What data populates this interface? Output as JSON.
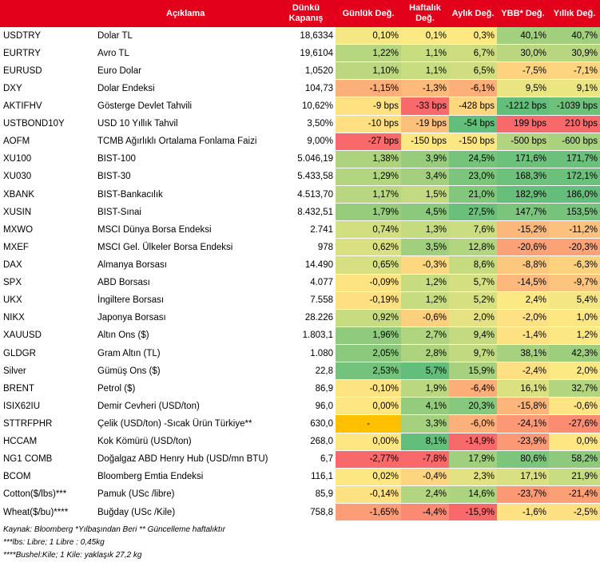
{
  "header": {
    "col_code": "",
    "col_desc": "Açıklama",
    "col_close": "Dünkü Kapanış",
    "col_daily": "Günlük Değ.",
    "col_weekly": "Haftalık Değ.",
    "col_monthly": "Aylık Değ.",
    "col_ytd": "YBB* Değ.",
    "col_yearly": "Yıllık Değ."
  },
  "colors": {
    "header_bg": "#e2001a",
    "green_strong": "#63be7b",
    "yellow": "#ffeb84",
    "red_strong": "#f8696b",
    "highlight": "#ffc000"
  },
  "rows": [
    {
      "code": "USDTRY",
      "desc": "Dolar TL",
      "close": "18,6334",
      "daily": "0,10%",
      "weekly": "0,1%",
      "monthly": "0,3%",
      "ytd": "40,1%",
      "yearly": "40,7%",
      "c": [
        "#f5e783",
        "#fbe983",
        "#fde882",
        "#a3d07e",
        "#a1cf7e"
      ]
    },
    {
      "code": "EURTRY",
      "desc": "Avro TL",
      "close": "19,6104",
      "daily": "1,22%",
      "weekly": "1,1%",
      "monthly": "6,7%",
      "ytd": "30,0%",
      "yearly": "30,9%",
      "c": [
        "#b6d67f",
        "#c8dc80",
        "#cfdd81",
        "#bad780",
        "#b8d67f"
      ]
    },
    {
      "code": "EURUSD",
      "desc": "Euro Dolar",
      "close": "1,0520",
      "daily": "1,10%",
      "weekly": "1,1%",
      "monthly": "6,5%",
      "ytd": "-7,5%",
      "yearly": "-7,1%",
      "c": [
        "#bcd780",
        "#c8dc80",
        "#d0de81",
        "#fdd37f",
        "#fdd47f"
      ]
    },
    {
      "code": "DXY",
      "desc": "Dolar Endeksi",
      "close": "104,73",
      "daily": "-1,15%",
      "weekly": "-1,3%",
      "monthly": "-6,1%",
      "ytd": "9,5%",
      "yearly": "9,1%",
      "c": [
        "#fcb079",
        "#fcbb7b",
        "#fcaf79",
        "#eae582",
        "#ebe582"
      ]
    },
    {
      "code": "AKTIFHV",
      "desc": "Gösterge Devlet Tahvili",
      "close": "10,62%",
      "daily": "-9 bps",
      "weekly": "-33 bps",
      "monthly": "-428 bps",
      "ytd": "-1212 bps",
      "yearly": "-1039 bps",
      "c": [
        "#fee282",
        "#f8696b",
        "#fed680",
        "#63be7b",
        "#6dc17b"
      ]
    },
    {
      "code": "USTBOND10Y",
      "desc": "USD 10 Yıllık Tahvil",
      "close": "3,50%",
      "daily": "-10 bps",
      "weekly": "-19 bps",
      "monthly": "-54 bps",
      "ytd": "199 bps",
      "yearly": "210 bps",
      "c": [
        "#fee082",
        "#fdbf7c",
        "#63be7b",
        "#f8696b",
        "#f8696b"
      ]
    },
    {
      "code": "AOFM",
      "desc": "TCMB Ağırlıklı Ortalama Fonlama Faizi",
      "close": "9,00%",
      "daily": "-27 bps",
      "weekly": "-150 bps",
      "monthly": "-150 bps",
      "ytd": "-500 bps",
      "yearly": "-600 bps",
      "c": [
        "#f8696b",
        "#fde783",
        "#fde783",
        "#b3d47f",
        "#a9d27f"
      ]
    },
    {
      "code": "XU100",
      "desc": "BIST-100",
      "close": "5.046,19",
      "daily": "1,38%",
      "weekly": "3,9%",
      "monthly": "24,5%",
      "ytd": "171,6%",
      "yearly": "171,7%",
      "c": [
        "#aed37e",
        "#98cc7d",
        "#76c47c",
        "#6cc17b",
        "#6bc17b"
      ]
    },
    {
      "code": "XU030",
      "desc": "BIST-30",
      "close": "5.433,58",
      "daily": "1,29%",
      "weekly": "3,4%",
      "monthly": "23,0%",
      "ytd": "168,3%",
      "yearly": "172,1%",
      "c": [
        "#b2d57f",
        "#a3cf7e",
        "#7cc57c",
        "#6ec17b",
        "#6bc17b"
      ]
    },
    {
      "code": "XBANK",
      "desc": "BIST-Bankacılık",
      "close": "4.513,70",
      "daily": "1,17%",
      "weekly": "1,5%",
      "monthly": "21,0%",
      "ytd": "182,9%",
      "yearly": "186,0%",
      "c": [
        "#b9d780",
        "#c3da80",
        "#82c77c",
        "#65bf7b",
        "#63be7b"
      ]
    },
    {
      "code": "XUSIN",
      "desc": "BIST-Sınai",
      "close": "8.432,51",
      "daily": "1,79%",
      "weekly": "4,5%",
      "monthly": "27,5%",
      "ytd": "147,7%",
      "yearly": "153,5%",
      "c": [
        "#97cc7d",
        "#8bc97d",
        "#6ac07b",
        "#7ac47c",
        "#76c37c"
      ]
    },
    {
      "code": "MXWO",
      "desc": "MSCI Dünya Borsa Endeksi",
      "close": "2.741",
      "daily": "0,74%",
      "weekly": "1,3%",
      "monthly": "7,6%",
      "ytd": "-15,2%",
      "yearly": "-11,2%",
      "c": [
        "#d2df81",
        "#c5db80",
        "#cbdd81",
        "#fcb77a",
        "#fcc17c"
      ]
    },
    {
      "code": "MXEF",
      "desc": "MSCI Gel. Ülkeler Borsa Endeksi",
      "close": "978",
      "daily": "0,62%",
      "weekly": "3,5%",
      "monthly": "12,8%",
      "ytd": "-20,6%",
      "yearly": "-20,3%",
      "c": [
        "#d8e081",
        "#a1cf7e",
        "#b2d57f",
        "#fba177",
        "#fba277"
      ]
    },
    {
      "code": "DAX",
      "desc": "Almanya Borsası",
      "close": "14.490",
      "daily": "0,65%",
      "weekly": "-0,3%",
      "monthly": "8,6%",
      "ytd": "-8,8%",
      "yearly": "-6,3%",
      "c": [
        "#d7e081",
        "#fdd880",
        "#c6db80",
        "#fcc87d",
        "#fdd27f"
      ]
    },
    {
      "code": "SPX",
      "desc": "ABD Borsası",
      "close": "4.077",
      "daily": "-0,09%",
      "weekly": "1,2%",
      "monthly": "5,7%",
      "ytd": "-14,5%",
      "yearly": "-9,7%",
      "c": [
        "#fee382",
        "#c7dc80",
        "#d4df81",
        "#fcb97b",
        "#fcc57d"
      ]
    },
    {
      "code": "UKX",
      "desc": "İngiltere Borsası",
      "close": "7.558",
      "daily": "-0,19%",
      "weekly": "1,2%",
      "monthly": "5,2%",
      "ytd": "2,4%",
      "yearly": "5,4%",
      "c": [
        "#fedf81",
        "#c7dc80",
        "#d6e081",
        "#fbe983",
        "#f4e683"
      ]
    },
    {
      "code": "NIKX",
      "desc": "Japonya Borsası",
      "close": "28.226",
      "daily": "0,92%",
      "weekly": "-0,6%",
      "monthly": "2,0%",
      "ytd": "-2,0%",
      "yearly": "1,0%",
      "c": [
        "#c7dc80",
        "#fdd07f",
        "#e4e282",
        "#fee182",
        "#fde783"
      ]
    },
    {
      "code": "XAUUSD",
      "desc": "Altın Ons ($)",
      "close": "1.803,1",
      "daily": "1,96%",
      "weekly": "2,7%",
      "monthly": "9,4%",
      "ytd": "-1,4%",
      "yearly": "1,2%",
      "c": [
        "#8fca7d",
        "#b0d47f",
        "#c3da80",
        "#fee282",
        "#fde783"
      ]
    },
    {
      "code": "GLDGR",
      "desc": "Gram Altın (TL)",
      "close": "1.080",
      "daily": "2,05%",
      "weekly": "2,8%",
      "monthly": "9,7%",
      "ytd": "38,1%",
      "yearly": "42,3%",
      "c": [
        "#8bc97d",
        "#aed37e",
        "#c1d980",
        "#a7d17e",
        "#9dce7e"
      ]
    },
    {
      "code": "Silver",
      "desc": "Gümüş Ons ($)",
      "close": "22,8",
      "daily": "2,53%",
      "weekly": "5,7%",
      "monthly": "15,9%",
      "ytd": "-2,4%",
      "yearly": "2,0%",
      "c": [
        "#73c37c",
        "#63be7b",
        "#a7d17e",
        "#fee082",
        "#fbe983"
      ]
    },
    {
      "code": "BRENT",
      "desc": "Petrol ($)",
      "close": "86,9",
      "daily": "-0,10%",
      "weekly": "1,9%",
      "monthly": "-6,4%",
      "ytd": "16,1%",
      "yearly": "32,7%",
      "c": [
        "#fee382",
        "#bbd780",
        "#fcae79",
        "#dbe181",
        "#b3d57f"
      ]
    },
    {
      "code": "ISIX62IU",
      "desc": "Demir Cevheri (USD/ton)",
      "close": "96,0",
      "daily": "0,00%",
      "weekly": "4,1%",
      "monthly": "20,3%",
      "ytd": "-15,8%",
      "yearly": "-0,6%",
      "c": [
        "#fee683",
        "#95cb7d",
        "#86c87d",
        "#fcb57a",
        "#fee482"
      ]
    },
    {
      "code": "STTRFPHR",
      "desc": "Çelik (USD/ton) -Sıcak Ürün Türkiye**",
      "close": "630,0",
      "daily": "-",
      "weekly": "3,3%",
      "monthly": "-6,0%",
      "ytd": "-24,1%",
      "yearly": "-27,6%",
      "c": [
        "#ffc000",
        "#a5d07e",
        "#fcb07a",
        "#fb9875",
        "#fa8c72"
      ]
    },
    {
      "code": "HCCAM",
      "desc": "Kok Kömürü (USD/ton)",
      "close": "268,0",
      "daily": "0,00%",
      "weekly": "8,1%",
      "monthly": "-14,9%",
      "ytd": "-23,9%",
      "yearly": "0,0%",
      "c": [
        "#fee683",
        "#63be7b",
        "#f8696b",
        "#fb9875",
        "#fee683"
      ]
    },
    {
      "code": "NG1 COMB",
      "desc": "Doğalgaz ABD Henry Hub (USD/mn BTU)",
      "close": "6,7",
      "daily": "-2,77%",
      "weekly": "-7,8%",
      "monthly": "17,9%",
      "ytd": "80,6%",
      "yearly": "58,2%",
      "c": [
        "#f8696b",
        "#f8696b",
        "#a0cf7e",
        "#7cc57c",
        "#8ec97d"
      ]
    },
    {
      "code": "BCOM",
      "desc": "Bloomberg Emtia Endeksi",
      "close": "116,1",
      "daily": "0,02%",
      "weekly": "-0,4%",
      "monthly": "2,3%",
      "ytd": "17,1%",
      "yearly": "21,9%",
      "c": [
        "#fde783",
        "#fdd47f",
        "#e2e282",
        "#d8e081",
        "#c8dc80"
      ]
    },
    {
      "code": "Cotton($/lbs)***",
      "desc": "Pamuk (USc /libre)",
      "close": "85,9",
      "daily": "-0,14%",
      "weekly": "2,4%",
      "monthly": "14,6%",
      "ytd": "-23,7%",
      "yearly": "-21,4%",
      "c": [
        "#fee182",
        "#b3d57f",
        "#acd37e",
        "#fb9975",
        "#fb9f76"
      ]
    },
    {
      "code": "Wheat($/bu)****",
      "desc": "Buğday (USc /Kile)",
      "close": "758,8",
      "daily": "-1,65%",
      "weekly": "-4,4%",
      "monthly": "-15,9%",
      "ytd": "-1,6%",
      "yearly": "-2,5%",
      "c": [
        "#fb9d76",
        "#fa8a72",
        "#f8696b",
        "#fee182",
        "#fde082"
      ]
    }
  ],
  "notes": [
    "Kaynak: Bloomberg *Yılbaşından Beri  ** Güncelleme haftalıktır",
    "***lbs: Libre; 1 Libre : 0,45kg",
    "****Bushel:Kile; 1 Kile: yaklaşık 27,2 kg"
  ]
}
